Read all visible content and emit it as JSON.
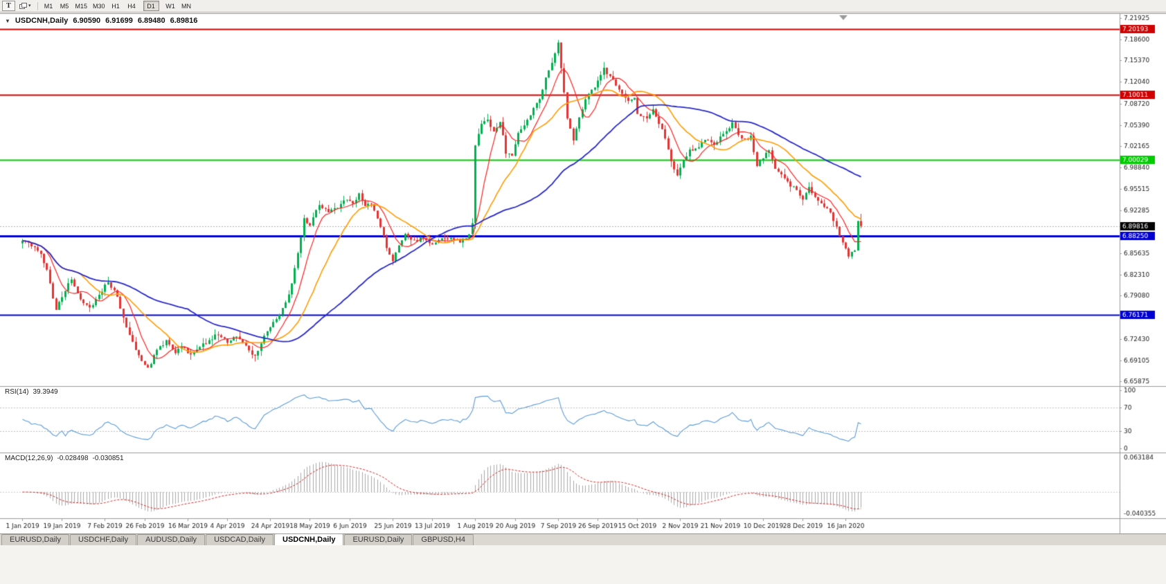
{
  "icons": {
    "one_click_arrow": "▼",
    "dropdown_caret": "▾"
  },
  "toolbar": {
    "tool_button_label": "T",
    "timeframes": [
      "M1",
      "M5",
      "M15",
      "M30",
      "H1",
      "H4",
      "D1",
      "W1",
      "MN"
    ],
    "active_timeframe": "D1"
  },
  "chart": {
    "title": "USDCNH,Daily",
    "ohlc": {
      "open": "6.90590",
      "high": "6.91699",
      "low": "6.89480",
      "close": "6.89816"
    }
  },
  "panes": {
    "rsi": {
      "label": "RSI(14)",
      "value": "39.3949"
    },
    "macd": {
      "label": "MACD(12,26,9)",
      "value_main": "-0.028498",
      "value_signal": "-0.030851"
    }
  },
  "price_axis": {
    "ticks": [
      "7.21925",
      "7.18600",
      "7.15370",
      "7.12040",
      "7.08720",
      "7.05390",
      "7.02165",
      "6.98840",
      "6.95515",
      "6.92285",
      "6.85635",
      "6.82310",
      "6.79080",
      "6.72430",
      "6.69105",
      "6.65875"
    ],
    "current_price": {
      "text": "6.89816",
      "bg": "#000000",
      "fg": "#ffffff"
    }
  },
  "rsi_axis": {
    "ticks": [
      "100",
      "70",
      "30",
      "0"
    ]
  },
  "macd_axis": {
    "top": "0.063184",
    "bottom": "-0.040355"
  },
  "time_axis": {
    "labels": [
      "1 Jan 2019",
      "19 Jan 2019",
      "7 Feb 2019",
      "26 Feb 2019",
      "16 Mar 2019",
      "4 Apr 2019",
      "24 Apr 2019",
      "18 May 2019",
      "6 Jun 2019",
      "25 Jun 2019",
      "13 Jul 2019",
      "1 Aug 2019",
      "20 Aug 2019",
      "7 Sep 2019",
      "26 Sep 2019",
      "15 Oct 2019",
      "2 Nov 2019",
      "21 Nov 2019",
      "10 Dec 2019",
      "28 Dec 2019",
      "16 Jan 2020"
    ]
  },
  "tabs": {
    "items": [
      "EURUSD,Daily",
      "USDCHF,Daily",
      "AUDUSD,Daily",
      "USDCAD,Daily",
      "USDCNH,Daily",
      "EURUSD,Daily",
      "GBPUSD,H4"
    ],
    "active_index": 4
  },
  "colors": {
    "candle_up": "#00b050",
    "candle_down": "#e53232",
    "separator": "#9a9a9a",
    "axis_text": "#1a1a1a",
    "current_price_line": "#b0b0b0",
    "rsi_level_line": "#bdbdbd",
    "macd_zero_line": "#cccccc"
  },
  "chart_data": {
    "type": "candlestick",
    "symbol": "USDCNH",
    "period": "Daily",
    "bars": 275,
    "price_range": [
      6.65875,
      7.21925
    ],
    "current_price": 6.89816,
    "last_bar": {
      "open": 6.9059,
      "high": 6.91699,
      "low": 6.8948,
      "close": 6.89816
    },
    "close_anchors": [
      [
        0,
        6.878
      ],
      [
        2,
        6.872
      ],
      [
        4,
        6.866
      ],
      [
        6,
        6.856
      ],
      [
        8,
        6.83
      ],
      [
        11,
        6.768
      ],
      [
        13,
        6.79
      ],
      [
        16,
        6.817
      ],
      [
        19,
        6.786
      ],
      [
        22,
        6.772
      ],
      [
        25,
        6.792
      ],
      [
        28,
        6.812
      ],
      [
        31,
        6.79
      ],
      [
        33,
        6.756
      ],
      [
        36,
        6.72
      ],
      [
        39,
        6.688
      ],
      [
        41,
        6.678
      ],
      [
        44,
        6.706
      ],
      [
        47,
        6.722
      ],
      [
        50,
        6.702
      ],
      [
        52,
        6.712
      ],
      [
        55,
        6.7
      ],
      [
        58,
        6.712
      ],
      [
        61,
        6.722
      ],
      [
        64,
        6.732
      ],
      [
        67,
        6.718
      ],
      [
        70,
        6.728
      ],
      [
        73,
        6.712
      ],
      [
        76,
        6.697
      ],
      [
        79,
        6.728
      ],
      [
        81,
        6.744
      ],
      [
        84,
        6.762
      ],
      [
        87,
        6.792
      ],
      [
        89,
        6.832
      ],
      [
        91,
        6.88
      ],
      [
        92,
        6.908
      ],
      [
        94,
        6.898
      ],
      [
        97,
        6.932
      ],
      [
        100,
        6.918
      ],
      [
        103,
        6.928
      ],
      [
        105,
        6.94
      ],
      [
        108,
        6.934
      ],
      [
        110,
        6.947
      ],
      [
        112,
        6.93
      ],
      [
        114,
        6.934
      ],
      [
        117,
        6.898
      ],
      [
        119,
        6.864
      ],
      [
        121,
        6.845
      ],
      [
        123,
        6.87
      ],
      [
        125,
        6.886
      ],
      [
        128,
        6.874
      ],
      [
        131,
        6.881
      ],
      [
        134,
        6.869
      ],
      [
        137,
        6.88
      ],
      [
        140,
        6.878
      ],
      [
        143,
        6.873
      ],
      [
        146,
        6.885
      ],
      [
        147,
        6.903
      ],
      [
        148,
        7.022
      ],
      [
        150,
        7.058
      ],
      [
        152,
        7.062
      ],
      [
        154,
        7.044
      ],
      [
        156,
        7.06
      ],
      [
        158,
        7.012
      ],
      [
        160,
        7.006
      ],
      [
        162,
        7.04
      ],
      [
        165,
        7.062
      ],
      [
        167,
        7.078
      ],
      [
        169,
        7.094
      ],
      [
        171,
        7.128
      ],
      [
        173,
        7.152
      ],
      [
        175,
        7.18
      ],
      [
        176,
        7.142
      ],
      [
        178,
        7.062
      ],
      [
        180,
        7.032
      ],
      [
        182,
        7.064
      ],
      [
        184,
        7.092
      ],
      [
        186,
        7.108
      ],
      [
        188,
        7.12
      ],
      [
        190,
        7.142
      ],
      [
        192,
        7.128
      ],
      [
        194,
        7.116
      ],
      [
        196,
        7.1
      ],
      [
        198,
        7.09
      ],
      [
        200,
        7.096
      ],
      [
        201,
        7.072
      ],
      [
        204,
        7.064
      ],
      [
        206,
        7.078
      ],
      [
        208,
        7.058
      ],
      [
        210,
        7.034
      ],
      [
        212,
        6.996
      ],
      [
        214,
        6.976
      ],
      [
        216,
        7.0
      ],
      [
        218,
        7.014
      ],
      [
        221,
        7.022
      ],
      [
        223,
        7.032
      ],
      [
        226,
        7.024
      ],
      [
        228,
        7.036
      ],
      [
        230,
        7.042
      ],
      [
        232,
        7.056
      ],
      [
        234,
        7.038
      ],
      [
        236,
        7.032
      ],
      [
        238,
        7.035
      ],
      [
        240,
        6.992
      ],
      [
        242,
        7.004
      ],
      [
        244,
        7.015
      ],
      [
        246,
        6.986
      ],
      [
        248,
        6.976
      ],
      [
        250,
        6.966
      ],
      [
        252,
        6.957
      ],
      [
        255,
        6.94
      ],
      [
        257,
        6.957
      ],
      [
        259,
        6.944
      ],
      [
        262,
        6.929
      ],
      [
        264,
        6.917
      ],
      [
        266,
        6.895
      ],
      [
        268,
        6.871
      ],
      [
        270,
        6.852
      ],
      [
        272,
        6.861
      ],
      [
        273,
        6.9059
      ],
      [
        274,
        6.89816
      ]
    ],
    "horizontal_lines": [
      {
        "price": 7.20193,
        "label": "7.20193",
        "color": "#d10000",
        "width": 2
      },
      {
        "price": 7.10011,
        "label": "7.10011",
        "color": "#d10000",
        "width": 2
      },
      {
        "price": 7.00029,
        "label": "7.00029",
        "color": "#00cc00",
        "width": 2
      },
      {
        "price": 6.8825,
        "label": "6.88250",
        "color": "#0000d1",
        "width": 3
      },
      {
        "price": 6.76171,
        "label": "6.76171",
        "color": "#0000d1",
        "width": 2
      }
    ],
    "moving_averages": [
      {
        "period": 8,
        "color": "#ff2020",
        "width": 1.2
      },
      {
        "period": 20,
        "color": "#ff9c00",
        "width": 1.6
      },
      {
        "period": 55,
        "color": "#2828c8",
        "width": 1.8
      }
    ],
    "indicators": [
      {
        "name": "RSI",
        "period": 14,
        "current": 39.3949,
        "levels": [
          70,
          30
        ],
        "scale": [
          0,
          100
        ],
        "color": "#5b9bd5"
      },
      {
        "name": "MACD",
        "fast": 12,
        "slow": 26,
        "signal": 9,
        "current_macd": -0.028498,
        "current_signal": -0.030851,
        "scale": [
          -0.040355,
          0.063184
        ],
        "histogram_color": "#a8a8a8",
        "signal_color": "#d22727"
      }
    ],
    "time_tick_indices": [
      0,
      13,
      27,
      40,
      54,
      67,
      81,
      94,
      107,
      121,
      134,
      148,
      161,
      175,
      188,
      201,
      215,
      228,
      242,
      255,
      269
    ],
    "grid": false,
    "legend": false
  }
}
